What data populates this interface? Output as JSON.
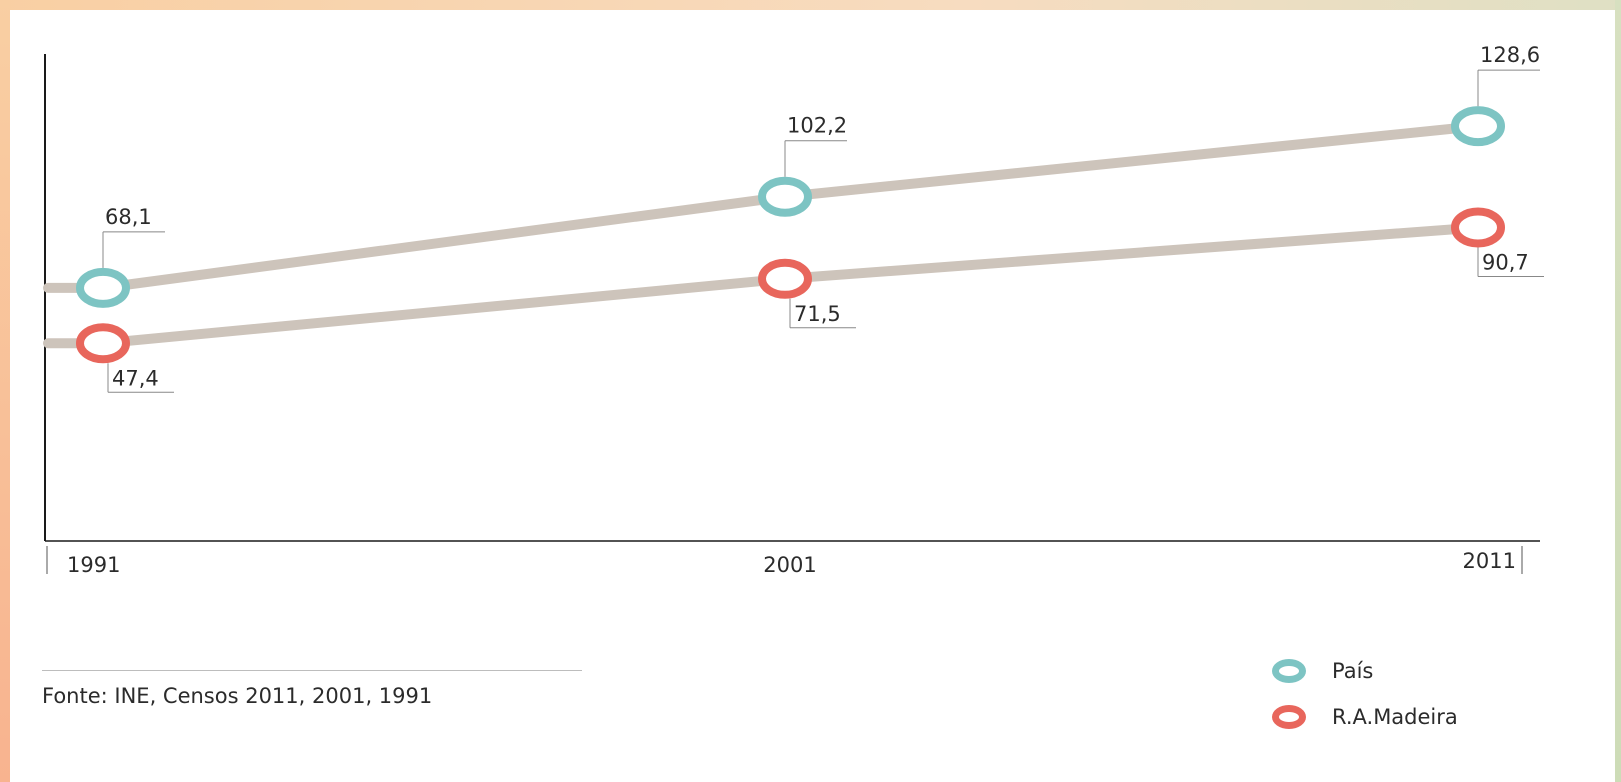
{
  "chart_data": {
    "type": "line",
    "categories": [
      "1991",
      "2001",
      "2011"
    ],
    "series": [
      {
        "name": "País",
        "values": [
          68.1,
          102.2,
          128.6
        ],
        "labels": [
          "68,1",
          "102,2",
          "128,6"
        ],
        "color": "#7dc4c3"
      },
      {
        "name": "R.A.Madeira",
        "values": [
          47.4,
          71.5,
          90.7
        ],
        "labels": [
          "47,4",
          "71,5",
          "90,7"
        ],
        "color": "#e8665c"
      }
    ],
    "line_color": "#cdc4bb",
    "ylim": [
      0,
      140
    ],
    "legend_position": "bottom-right",
    "grid": false
  },
  "source": "Fonte: INE, Censos 2011, 2001, 1991"
}
